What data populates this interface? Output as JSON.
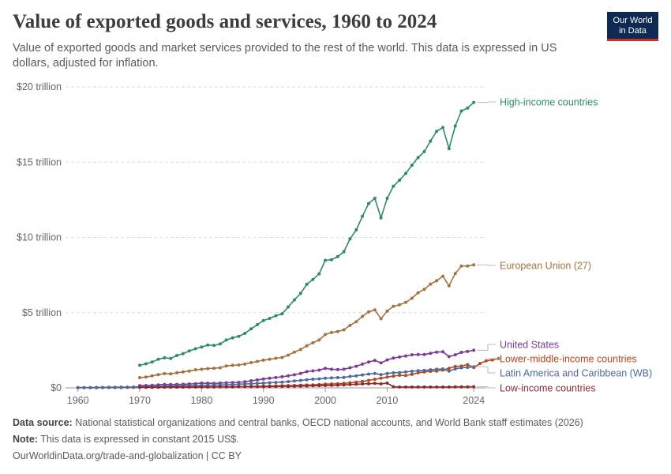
{
  "header": {
    "title": "Value of exported goods and services, 1960 to 2024",
    "subtitle": "Value of exported goods and market services provided to the rest of the world. This data is expressed in US dollars, adjusted for inflation."
  },
  "logo": {
    "line1": "Our World",
    "line2": "in Data"
  },
  "footer": {
    "source_label": "Data source:",
    "source_text": "National statistical organizations and central banks, OECD national accounts, and World Bank staff estimates (2026)",
    "note_label": "Note:",
    "note_text": "This data is expressed in constant 2015 US$.",
    "url": "OurWorldinData.org/trade-and-globalization | CC BY"
  },
  "colors": {
    "high_income": "#2e8a6b",
    "eu": "#a2733f",
    "us": "#7d3a96",
    "lower_middle": "#b5471c",
    "latam": "#4e6a9a",
    "low_income": "#8a2a30",
    "grid": "#dddddd",
    "axis_text": "#666666"
  },
  "chart_data": {
    "type": "line",
    "title": "Value of exported goods and services, 1960 to 2024",
    "y_unit": "trillion US$ (constant 2015)",
    "xlim": [
      1958,
      2025
    ],
    "ylim": [
      0,
      20
    ],
    "x_ticks": [
      1960,
      1970,
      1980,
      1990,
      2000,
      2010,
      2024
    ],
    "y_ticks": [
      {
        "value": 0,
        "label": "$0"
      },
      {
        "value": 5,
        "label": "$5 trillion"
      },
      {
        "value": 10,
        "label": "$10 trillion"
      },
      {
        "value": 15,
        "label": "$15 trillion"
      },
      {
        "value": 20,
        "label": "$20 trillion"
      }
    ],
    "grid": true,
    "legend": "right-end labels",
    "series": [
      {
        "name": "High-income countries",
        "color_key": "high_income",
        "x_start": 1970,
        "values": [
          1.5,
          1.6,
          1.72,
          1.9,
          2.0,
          1.96,
          2.15,
          2.28,
          2.45,
          2.6,
          2.72,
          2.85,
          2.82,
          2.92,
          3.18,
          3.33,
          3.42,
          3.62,
          3.92,
          4.2,
          4.48,
          4.62,
          4.8,
          4.92,
          5.38,
          5.85,
          6.28,
          6.88,
          7.2,
          7.58,
          8.48,
          8.52,
          8.72,
          9.05,
          9.9,
          10.5,
          11.4,
          12.25,
          12.6,
          11.3,
          12.6,
          13.4,
          13.8,
          14.25,
          14.8,
          15.3,
          15.7,
          16.4,
          17.05,
          17.3,
          15.9,
          17.4,
          18.4,
          18.6,
          18.97
        ]
      },
      {
        "name": "European Union (27)",
        "color_key": "eu",
        "x_start": 1970,
        "values": [
          0.68,
          0.72,
          0.8,
          0.88,
          0.95,
          0.93,
          1.0,
          1.06,
          1.12,
          1.2,
          1.24,
          1.28,
          1.3,
          1.34,
          1.46,
          1.5,
          1.52,
          1.58,
          1.68,
          1.76,
          1.84,
          1.9,
          1.97,
          2.02,
          2.18,
          2.38,
          2.55,
          2.8,
          3.0,
          3.18,
          3.55,
          3.68,
          3.75,
          3.86,
          4.15,
          4.4,
          4.75,
          5.05,
          5.18,
          4.6,
          5.1,
          5.42,
          5.52,
          5.68,
          5.96,
          6.32,
          6.55,
          6.9,
          7.12,
          7.42,
          6.78,
          7.6,
          8.1,
          8.1,
          8.18
        ]
      },
      {
        "name": "United States",
        "color_key": "us",
        "x_start": 1970,
        "values": [
          0.15,
          0.16,
          0.17,
          0.2,
          0.23,
          0.22,
          0.23,
          0.24,
          0.26,
          0.28,
          0.32,
          0.31,
          0.3,
          0.32,
          0.34,
          0.35,
          0.37,
          0.41,
          0.47,
          0.53,
          0.59,
          0.64,
          0.69,
          0.74,
          0.8,
          0.87,
          0.96,
          1.08,
          1.13,
          1.18,
          1.3,
          1.24,
          1.22,
          1.24,
          1.34,
          1.44,
          1.58,
          1.72,
          1.82,
          1.66,
          1.86,
          1.98,
          2.05,
          2.12,
          2.2,
          2.22,
          2.22,
          2.3,
          2.38,
          2.4,
          2.08,
          2.2,
          2.36,
          2.42,
          2.5
        ]
      },
      {
        "name": "Lower-middle-income countries",
        "color_key": "lower_middle",
        "x_start": 1960,
        "values": [
          0.01,
          0.01,
          0.01,
          0.01,
          0.02,
          0.02,
          0.02,
          0.02,
          0.03,
          0.03,
          0.04,
          0.04,
          0.04,
          0.04,
          0.05,
          0.05,
          0.05,
          0.05,
          0.06,
          0.06,
          0.07,
          0.07,
          0.07,
          0.08,
          0.08,
          0.08,
          0.09,
          0.09,
          0.1,
          0.1,
          0.12,
          0.12,
          0.13,
          0.14,
          0.15,
          0.16,
          0.18,
          0.19,
          0.2,
          0.22,
          0.25,
          0.26,
          0.28,
          0.3,
          0.34,
          0.38,
          0.43,
          0.5,
          0.57,
          0.64,
          0.72,
          0.78,
          0.84,
          0.82,
          0.9,
          1.0,
          1.06,
          1.1,
          1.12,
          1.18,
          1.3,
          1.42,
          1.45,
          1.55,
          1.35,
          1.62,
          1.8,
          1.86,
          1.95
        ]
      },
      {
        "name": "Latin America and Caribbean (WB)",
        "color_key": "latam",
        "x_start": 1960,
        "values": [
          0.02,
          0.02,
          0.02,
          0.03,
          0.03,
          0.04,
          0.04,
          0.05,
          0.05,
          0.06,
          0.07,
          0.08,
          0.09,
          0.1,
          0.11,
          0.12,
          0.13,
          0.14,
          0.15,
          0.16,
          0.17,
          0.18,
          0.19,
          0.2,
          0.21,
          0.22,
          0.24,
          0.26,
          0.28,
          0.3,
          0.32,
          0.34,
          0.36,
          0.38,
          0.42,
          0.46,
          0.5,
          0.54,
          0.58,
          0.6,
          0.64,
          0.66,
          0.68,
          0.7,
          0.76,
          0.8,
          0.86,
          0.92,
          0.96,
          0.88,
          0.96,
          1.0,
          1.02,
          1.06,
          1.1,
          1.14,
          1.16,
          1.2,
          1.24,
          1.26,
          1.12,
          1.26,
          1.34,
          1.36,
          1.4
        ]
      },
      {
        "name": "Low-income countries",
        "color_key": "low_income",
        "x_start": 1970,
        "values": [
          0.04,
          0.04,
          0.04,
          0.05,
          0.05,
          0.05,
          0.05,
          0.06,
          0.06,
          0.06,
          0.06,
          0.06,
          0.07,
          0.07,
          0.07,
          0.07,
          0.08,
          0.08,
          0.08,
          0.08,
          0.08,
          0.09,
          0.09,
          0.1,
          0.1,
          0.11,
          0.12,
          0.13,
          0.14,
          0.15,
          0.16,
          0.17,
          0.18,
          0.2,
          0.22,
          0.24,
          0.26,
          0.28,
          0.3,
          0.27,
          0.32,
          0.08,
          0.06,
          0.06,
          0.06,
          0.06,
          0.06,
          0.06,
          0.06,
          0.06,
          0.06,
          0.07,
          0.07,
          0.07,
          0.08
        ]
      }
    ]
  }
}
